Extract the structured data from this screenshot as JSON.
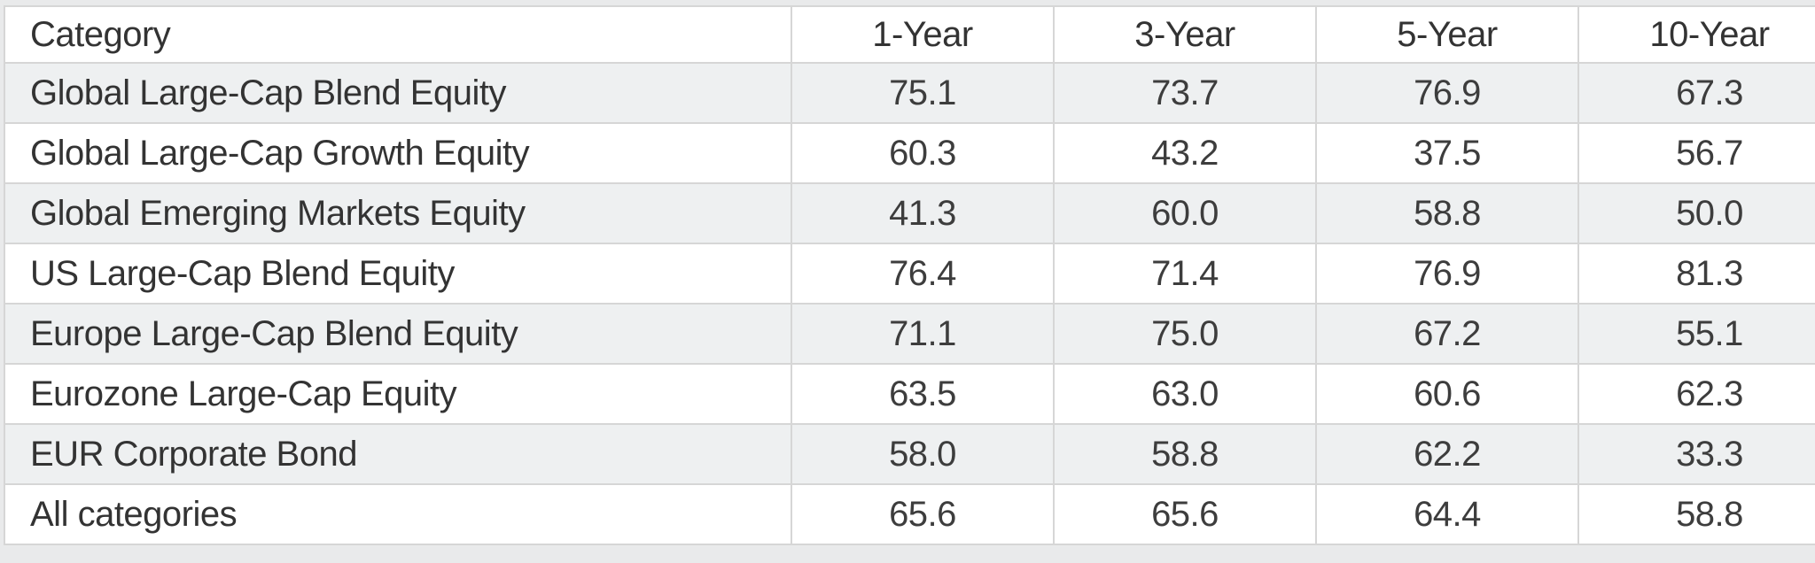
{
  "table": {
    "columns": [
      "Category",
      "1-Year",
      "3-Year",
      "5-Year",
      "10-Year"
    ],
    "rows": [
      {
        "category": "Global Large-Cap Blend Equity",
        "values": [
          "75.1",
          "73.7",
          "76.9",
          "67.3"
        ]
      },
      {
        "category": "Global Large-Cap Growth Equity",
        "values": [
          "60.3",
          "43.2",
          "37.5",
          "56.7"
        ]
      },
      {
        "category": "Global Emerging Markets Equity",
        "values": [
          "41.3",
          "60.0",
          "58.8",
          "50.0"
        ]
      },
      {
        "category": "US Large-Cap Blend Equity",
        "values": [
          "76.4",
          "71.4",
          "76.9",
          "81.3"
        ]
      },
      {
        "category": "Europe Large-Cap Blend Equity",
        "values": [
          "71.1",
          "75.0",
          "67.2",
          "55.1"
        ]
      },
      {
        "category": "Eurozone Large-Cap Equity",
        "values": [
          "63.5",
          "63.0",
          "60.6",
          "62.3"
        ]
      },
      {
        "category": "EUR Corporate Bond",
        "values": [
          "58.0",
          "58.8",
          "62.2",
          "33.3"
        ]
      },
      {
        "category": "All categories",
        "values": [
          "65.6",
          "65.6",
          "64.4",
          "58.8"
        ]
      }
    ]
  },
  "chart_data": {
    "type": "table",
    "title": "",
    "columns": [
      "Category",
      "1-Year",
      "3-Year",
      "5-Year",
      "10-Year"
    ],
    "rows": [
      [
        "Global Large-Cap Blend Equity",
        75.1,
        73.7,
        76.9,
        67.3
      ],
      [
        "Global Large-Cap Growth Equity",
        60.3,
        43.2,
        37.5,
        56.7
      ],
      [
        "Global Emerging Markets Equity",
        41.3,
        60.0,
        58.8,
        50.0
      ],
      [
        "US Large-Cap Blend Equity",
        76.4,
        71.4,
        76.9,
        81.3
      ],
      [
        "Europe Large-Cap Blend Equity",
        71.1,
        75.0,
        67.2,
        55.1
      ],
      [
        "Eurozone Large-Cap Equity",
        63.5,
        63.0,
        60.6,
        62.3
      ],
      [
        "EUR Corporate Bond",
        58.0,
        58.8,
        62.2,
        33.3
      ],
      [
        "All categories",
        65.6,
        65.6,
        64.4,
        58.8
      ]
    ],
    "layout": {
      "striped_rows": "odd data rows shaded",
      "value_alignment": "center",
      "category_alignment": "left"
    }
  },
  "colors": {
    "page_background": "#e9eaeb",
    "row_stripe": "#eef0f1",
    "row_white": "#ffffff",
    "border": "#d6d6d6",
    "text": "#333333"
  }
}
